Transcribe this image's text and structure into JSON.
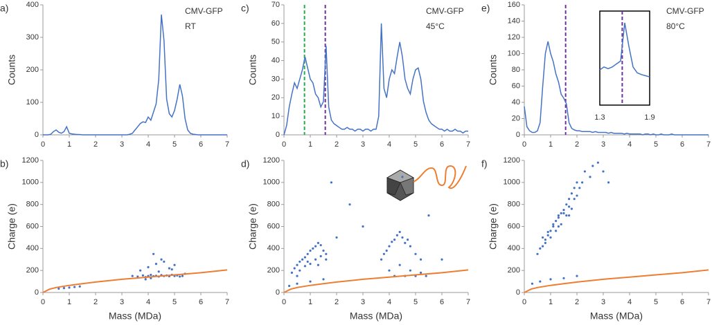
{
  "chart_data": [
    {
      "type": "line",
      "label": "a)",
      "annotations": [
        "CMV-GFP",
        "RT"
      ],
      "ylabel": "Counts",
      "color": "#4472c4",
      "x": [
        0,
        0.1,
        0.2,
        0.3,
        0.4,
        0.5,
        0.6,
        0.7,
        0.8,
        0.9,
        1,
        1.1,
        1.2,
        1.3,
        1.4,
        1.5,
        1.6,
        1.7,
        1.8,
        1.9,
        2,
        2.1,
        2.2,
        2.3,
        2.4,
        2.5,
        2.6,
        2.7,
        2.8,
        2.9,
        3,
        3.1,
        3.2,
        3.3,
        3.4,
        3.5,
        3.6,
        3.7,
        3.8,
        3.9,
        4,
        4.1,
        4.2,
        4.3,
        4.4,
        4.5,
        4.6,
        4.7,
        4.8,
        4.9,
        5,
        5.1,
        5.2,
        5.3,
        5.4,
        5.5,
        5.6,
        5.7,
        5.8,
        5.9,
        6,
        6.1,
        6.2,
        6.3,
        6.4,
        6.5,
        6.6,
        6.7,
        6.8,
        6.9,
        7
      ],
      "values": [
        0,
        0,
        0,
        2,
        10,
        15,
        8,
        5,
        10,
        25,
        5,
        3,
        2,
        1,
        1,
        0,
        0,
        0,
        0,
        0,
        0,
        0,
        0,
        0,
        0,
        0,
        0,
        0,
        0,
        0,
        0,
        0,
        0,
        2,
        5,
        15,
        25,
        35,
        40,
        38,
        55,
        45,
        70,
        95,
        170,
        370,
        290,
        110,
        65,
        55,
        75,
        110,
        155,
        120,
        50,
        15,
        5,
        2,
        1,
        0,
        0,
        0,
        0,
        0,
        0,
        0,
        0,
        0,
        0,
        0,
        0
      ],
      "xlim": [
        0,
        7
      ],
      "xticks": [
        0,
        1,
        2,
        3,
        4,
        5,
        6,
        7
      ],
      "ylim": [
        0,
        400
      ],
      "yticks": [
        0,
        100,
        200,
        300,
        400
      ]
    },
    {
      "type": "scatter",
      "label": "b)",
      "xlabel": "Mass (MDa)",
      "ylabel": "Charge (e)",
      "color": "#4472c4",
      "x": [
        0.6,
        0.8,
        1.0,
        1.2,
        1.4,
        3.4,
        3.6,
        3.8,
        3.9,
        4.0,
        4.1,
        4.2,
        4.3,
        4.4,
        4.5,
        4.6,
        4.7,
        4.8,
        4.9,
        5.0,
        5.1,
        5.2,
        5.3,
        3.7,
        4.0,
        4.3,
        4.5,
        4.8,
        5.0,
        4.2,
        4.6,
        4.4,
        4.9,
        5.4,
        3.9,
        4.1
      ],
      "y": [
        35,
        40,
        45,
        50,
        55,
        150,
        145,
        155,
        140,
        150,
        160,
        148,
        152,
        145,
        158,
        150,
        155,
        148,
        160,
        150,
        155,
        145,
        150,
        200,
        230,
        260,
        300,
        220,
        250,
        350,
        280,
        190,
        210,
        170,
        120,
        130
      ],
      "curve": {
        "color": "#ed7d31",
        "x": [
          0,
          0.25,
          0.5,
          1,
          1.5,
          2,
          3,
          4,
          5,
          6,
          7
        ],
        "y": [
          0,
          30,
          45,
          65,
          80,
          95,
          120,
          140,
          160,
          180,
          205
        ]
      },
      "xlim": [
        0,
        7
      ],
      "xticks": [
        0,
        1,
        2,
        3,
        4,
        5,
        6,
        7
      ],
      "ylim": [
        0,
        1200
      ],
      "yticks": [
        0,
        200,
        400,
        600,
        800,
        1000,
        1200
      ]
    },
    {
      "type": "line",
      "label": "c)",
      "annotations": [
        "CMV-GFP",
        "45°C"
      ],
      "ylabel": "Counts",
      "color": "#4472c4",
      "x": [
        0,
        0.1,
        0.2,
        0.3,
        0.4,
        0.5,
        0.6,
        0.7,
        0.8,
        0.9,
        1,
        1.1,
        1.2,
        1.3,
        1.4,
        1.5,
        1.6,
        1.7,
        1.8,
        1.9,
        2,
        2.1,
        2.2,
        2.3,
        2.4,
        2.5,
        2.6,
        2.7,
        2.8,
        2.9,
        3,
        3.1,
        3.2,
        3.3,
        3.4,
        3.5,
        3.6,
        3.7,
        3.8,
        3.9,
        4,
        4.1,
        4.2,
        4.3,
        4.4,
        4.5,
        4.6,
        4.7,
        4.8,
        4.9,
        5,
        5.1,
        5.2,
        5.3,
        5.4,
        5.5,
        5.6,
        5.7,
        5.8,
        5.9,
        6,
        6.1,
        6.2,
        6.3,
        6.4,
        6.5,
        6.6,
        6.7,
        6.8,
        6.9,
        7
      ],
      "values": [
        0,
        5,
        15,
        22,
        28,
        25,
        30,
        35,
        42,
        36,
        30,
        28,
        22,
        20,
        15,
        18,
        48,
        15,
        8,
        6,
        5,
        4,
        3,
        3,
        4,
        3,
        3,
        2,
        3,
        3,
        2,
        3,
        3,
        2,
        3,
        3,
        10,
        60,
        25,
        20,
        30,
        35,
        33,
        42,
        50,
        42,
        30,
        25,
        22,
        30,
        35,
        36,
        30,
        18,
        12,
        8,
        6,
        5,
        4,
        3,
        3,
        2,
        3,
        2,
        2,
        3,
        2,
        2,
        1,
        2,
        2
      ],
      "vlines": [
        {
          "x": 0.78,
          "color": "#22b04c"
        },
        {
          "x": 1.57,
          "color": "#7030a0"
        }
      ],
      "xlim": [
        0,
        7
      ],
      "xticks": [
        0,
        1,
        2,
        3,
        4,
        5,
        6,
        7
      ],
      "ylim": [
        0,
        70
      ],
      "yticks": [
        0,
        10,
        20,
        30,
        40,
        50,
        60,
        70
      ]
    },
    {
      "type": "scatter",
      "label": "d)",
      "xlabel": "Mass (MDa)",
      "ylabel": "Charge (e)",
      "color": "#4472c4",
      "x": [
        0.3,
        0.4,
        0.5,
        0.6,
        0.7,
        0.8,
        0.9,
        1.0,
        1.1,
        1.2,
        1.3,
        1.4,
        1.5,
        1.6,
        0.6,
        0.8,
        1.0,
        1.2,
        1.4,
        1.6,
        0.5,
        0.9,
        1.3,
        3.7,
        3.8,
        3.9,
        4.0,
        4.1,
        4.2,
        4.3,
        4.4,
        4.5,
        4.6,
        4.7,
        4.8,
        5.0,
        5.2,
        4.0,
        4.4,
        4.8,
        5.2,
        4.2,
        4.6,
        5.0,
        5.4,
        0.2,
        0.5,
        1.0,
        1.5,
        2.5,
        3.0,
        6.0,
        2.0,
        1.8,
        4.5,
        5.5
      ],
      "y": [
        180,
        220,
        250,
        280,
        300,
        320,
        350,
        380,
        400,
        420,
        450,
        430,
        380,
        350,
        200,
        240,
        260,
        300,
        330,
        300,
        150,
        280,
        250,
        300,
        350,
        380,
        420,
        460,
        480,
        520,
        550,
        500,
        450,
        480,
        420,
        350,
        300,
        200,
        250,
        200,
        180,
        150,
        150,
        150,
        150,
        60,
        80,
        100,
        120,
        800,
        600,
        300,
        500,
        1000,
        1050,
        700
      ],
      "curve": {
        "color": "#ed7d31",
        "x": [
          0,
          0.25,
          0.5,
          1,
          1.5,
          2,
          3,
          4,
          5,
          6,
          7
        ],
        "y": [
          0,
          30,
          45,
          65,
          80,
          95,
          120,
          140,
          160,
          180,
          205
        ]
      },
      "xlim": [
        0,
        7
      ],
      "xticks": [
        0,
        1,
        2,
        3,
        4,
        5,
        6,
        7
      ],
      "ylim": [
        0,
        1200
      ],
      "yticks": [
        0,
        200,
        400,
        600,
        800,
        1000,
        1200
      ]
    },
    {
      "type": "line",
      "label": "e)",
      "annotations": [
        "CMV-GFP",
        "80°C"
      ],
      "ylabel": "Counts",
      "color": "#4472c4",
      "x": [
        0,
        0.1,
        0.2,
        0.3,
        0.4,
        0.5,
        0.6,
        0.7,
        0.8,
        0.9,
        1,
        1.1,
        1.2,
        1.3,
        1.4,
        1.5,
        1.6,
        1.7,
        1.8,
        1.9,
        2,
        2.1,
        2.2,
        2.3,
        2.4,
        2.5,
        2.6,
        2.7,
        2.8,
        2.9,
        3,
        3.1,
        3.2,
        3.3,
        3.4,
        3.5,
        3.6,
        3.7,
        3.8,
        3.9,
        4,
        4.1,
        4.2,
        4.3,
        4.4,
        4.5,
        4.6,
        4.7,
        4.8,
        4.9,
        5,
        5.1,
        5.2,
        5.3,
        5.4,
        5.5,
        5.6,
        5.7,
        5.8,
        5.9,
        6,
        6.1,
        6.2,
        6.3,
        6.4,
        6.5,
        6.6,
        6.7,
        6.8,
        6.9,
        7
      ],
      "values": [
        35,
        10,
        5,
        3,
        3,
        5,
        15,
        60,
        100,
        115,
        100,
        90,
        75,
        65,
        50,
        45,
        38,
        15,
        8,
        6,
        5,
        5,
        4,
        4,
        4,
        4,
        3,
        4,
        3,
        3,
        3,
        3,
        2,
        3,
        2,
        2,
        2,
        2,
        1,
        2,
        1,
        1,
        1,
        1,
        1,
        0,
        1,
        1,
        0,
        1,
        0,
        0,
        1,
        0,
        0,
        0,
        1,
        0,
        0,
        0,
        0,
        0,
        0,
        0,
        0,
        0,
        0,
        0,
        0,
        0,
        0
      ],
      "vlines": [
        {
          "x": 1.57,
          "color": "#7030a0"
        }
      ],
      "inset": {
        "xlim": [
          1.3,
          1.9
        ],
        "xticks": [
          1.3,
          1.9
        ],
        "ylim": [
          0,
          160
        ],
        "x": [
          1.3,
          1.35,
          1.4,
          1.45,
          1.5,
          1.55,
          1.6,
          1.65,
          1.7,
          1.75,
          1.8,
          1.85,
          1.9
        ],
        "values": [
          60,
          65,
          62,
          65,
          70,
          75,
          140,
          100,
          65,
          55,
          52,
          50,
          48
        ],
        "marker": 1.57
      },
      "xlim": [
        0,
        7
      ],
      "xticks": [
        0,
        1,
        2,
        3,
        4,
        5,
        6,
        7
      ],
      "ylim": [
        0,
        160
      ],
      "yticks": [
        0,
        20,
        40,
        60,
        80,
        100,
        120,
        140,
        160
      ]
    },
    {
      "type": "scatter",
      "label": "f)",
      "xlabel": "Mass (MDa)",
      "ylabel": "Charge (e)",
      "color": "#4472c4",
      "x": [
        0.5,
        0.6,
        0.7,
        0.8,
        0.9,
        1.0,
        1.1,
        1.2,
        1.3,
        1.4,
        1.5,
        1.6,
        1.7,
        1.8,
        1.9,
        2.0,
        0.7,
        0.9,
        1.1,
        1.3,
        1.5,
        1.7,
        1.9,
        2.1,
        0.8,
        1.0,
        1.2,
        1.4,
        1.6,
        1.8,
        2.0,
        2.2,
        1.3,
        1.7,
        2.3,
        2.6,
        3.0,
        2.5,
        2.8,
        3.2,
        0.3,
        0.6,
        1.0,
        1.5,
        2.0
      ],
      "y": [
        350,
        400,
        420,
        480,
        520,
        560,
        600,
        650,
        700,
        720,
        750,
        800,
        850,
        900,
        950,
        1000,
        500,
        550,
        620,
        680,
        720,
        780,
        850,
        950,
        450,
        500,
        560,
        620,
        700,
        760,
        880,
        1000,
        600,
        700,
        1100,
        1150,
        1100,
        1050,
        1180,
        1000,
        80,
        100,
        120,
        130,
        150
      ],
      "curve": {
        "color": "#ed7d31",
        "x": [
          0,
          0.25,
          0.5,
          1,
          1.5,
          2,
          3,
          4,
          5,
          6,
          7
        ],
        "y": [
          0,
          30,
          45,
          65,
          80,
          95,
          120,
          140,
          160,
          180,
          205
        ]
      },
      "xlim": [
        0,
        7
      ],
      "xticks": [
        0,
        1,
        2,
        3,
        4,
        5,
        6,
        7
      ],
      "ylim": [
        0,
        1200
      ],
      "yticks": [
        0,
        200,
        400,
        600,
        800,
        1000,
        1200
      ]
    }
  ]
}
